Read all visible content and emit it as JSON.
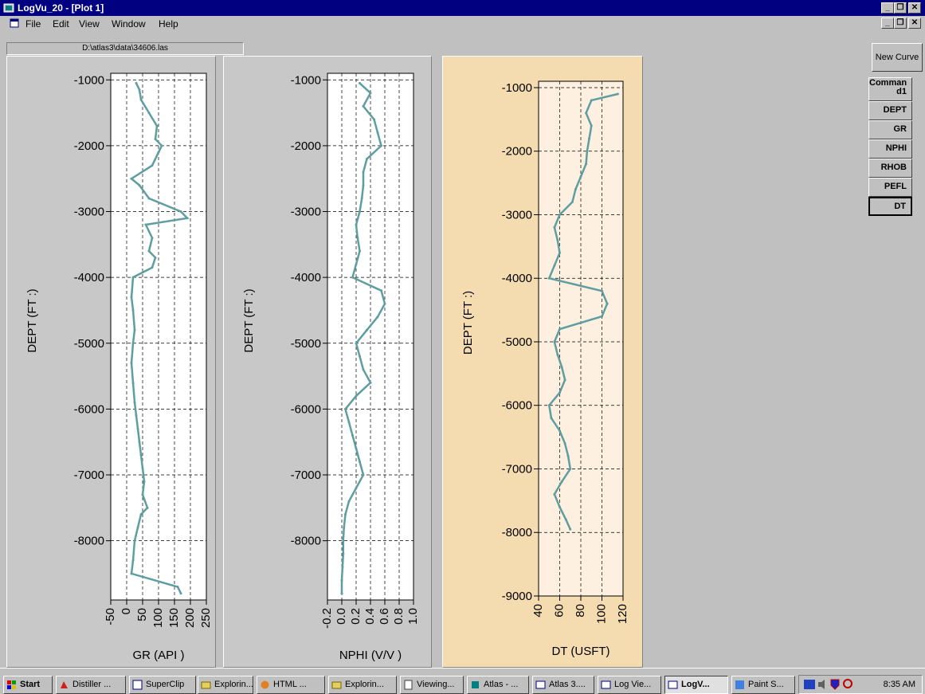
{
  "window": {
    "title": "LogVu_20 - [Plot 1]",
    "caption_buttons": [
      "_",
      "❐",
      "✕"
    ],
    "mdi_buttons": [
      "_",
      "❐",
      "✕"
    ]
  },
  "menu": {
    "file": "File",
    "edit": "Edit",
    "view": "View",
    "window": "Window",
    "help": "Help"
  },
  "file_path": "D:\\atlas3\\data\\34606.las",
  "sidebar": {
    "new_curve": "New Curve",
    "command": "Comman d1",
    "curves": [
      "DEPT",
      "GR",
      "NPHI",
      "RHOB",
      "PEFL",
      "DT"
    ]
  },
  "colors": {
    "curve": "#5f9ea0",
    "panel_bg": "#c8c8c8",
    "panel_selected": "#f4dcb0",
    "plot_bg": "#ffffff",
    "plot_selected_bg": "#fdf0e0"
  },
  "chart_data": [
    {
      "type": "line",
      "curve": "GR",
      "xlabel": "GR (API )",
      "ylabel": "DEPT (FT :)",
      "xlim": [
        -50,
        250
      ],
      "ylim": [
        -8900,
        -900
      ],
      "xticks": [
        "-50",
        "0",
        "50",
        "100",
        "150",
        "200",
        "250"
      ],
      "yticks": [
        "-1000",
        "-2000",
        "-3000",
        "-4000",
        "-5000",
        "-6000",
        "-7000",
        "-8000"
      ],
      "depth": [
        -1050,
        -1150,
        -1300,
        -1500,
        -1700,
        -1900,
        -2000,
        -2100,
        -2300,
        -2500,
        -2600,
        -2800,
        -3000,
        -3100,
        -3200,
        -3400,
        -3600,
        -3700,
        -3850,
        -4000,
        -4300,
        -4500,
        -4800,
        -5000,
        -5300,
        -5600,
        -5900,
        -6100,
        -6300,
        -6500,
        -6700,
        -6900,
        -7100,
        -7300,
        -7500,
        -7600,
        -7800,
        -8000,
        -8300,
        -8500,
        -8700,
        -8800
      ],
      "values": [
        30,
        40,
        45,
        70,
        95,
        90,
        110,
        100,
        80,
        15,
        40,
        70,
        170,
        190,
        60,
        80,
        70,
        90,
        80,
        20,
        15,
        20,
        25,
        20,
        15,
        20,
        25,
        30,
        35,
        40,
        45,
        50,
        55,
        50,
        65,
        45,
        35,
        25,
        20,
        15,
        160,
        170
      ]
    },
    {
      "type": "line",
      "curve": "NPHI",
      "xlabel": "NPHI (V/V )",
      "ylabel": "DEPT (FT :)",
      "xlim": [
        -0.2,
        1.0
      ],
      "ylim": [
        -8900,
        -900
      ],
      "xticks": [
        "-0.2",
        "0.0",
        "0.2",
        "0.4",
        "0.6",
        "0.8",
        "1.0"
      ],
      "yticks": [
        "-1000",
        "-2000",
        "-3000",
        "-4000",
        "-5000",
        "-6000",
        "-7000",
        "-8000"
      ],
      "depth": [
        -1050,
        -1200,
        -1400,
        -1600,
        -1800,
        -2000,
        -2200,
        -2400,
        -2600,
        -2800,
        -3000,
        -3200,
        -3400,
        -3600,
        -3800,
        -4000,
        -4200,
        -4400,
        -4600,
        -4800,
        -5000,
        -5200,
        -5400,
        -5600,
        -5800,
        -6000,
        -6200,
        -6400,
        -6600,
        -6800,
        -7000,
        -7200,
        -7400,
        -7600,
        -7800,
        -8000,
        -8200,
        -8400,
        -8600,
        -8800
      ],
      "values": [
        0.25,
        0.4,
        0.3,
        0.45,
        0.5,
        0.55,
        0.35,
        0.3,
        0.3,
        0.28,
        0.25,
        0.2,
        0.22,
        0.25,
        0.2,
        0.15,
        0.55,
        0.6,
        0.5,
        0.35,
        0.2,
        0.25,
        0.3,
        0.4,
        0.2,
        0.05,
        0.1,
        0.15,
        0.2,
        0.25,
        0.3,
        0.2,
        0.1,
        0.05,
        0.03,
        0.02,
        0.02,
        0.01,
        0.0,
        0.0
      ]
    },
    {
      "type": "line",
      "curve": "DT",
      "xlabel": "DT (USFT)",
      "ylabel": "DEPT (FT :)",
      "xlim": [
        40,
        120
      ],
      "ylim": [
        -9000,
        -900
      ],
      "xticks": [
        "40",
        "60",
        "80",
        "100",
        "120"
      ],
      "yticks": [
        "-1000",
        "-2000",
        "-3000",
        "-4000",
        "-5000",
        "-6000",
        "-7000",
        "-8000",
        "-9000"
      ],
      "depth": [
        -1100,
        -1200,
        -1400,
        -1600,
        -1800,
        -2000,
        -2200,
        -2400,
        -2600,
        -2800,
        -3000,
        -3200,
        -3400,
        -3600,
        -3800,
        -4000,
        -4200,
        -4400,
        -4600,
        -4800,
        -5000,
        -5200,
        -5400,
        -5600,
        -5800,
        -6000,
        -6200,
        -6400,
        -6600,
        -6800,
        -7000,
        -7200,
        -7400,
        -7600,
        -7800,
        -7950
      ],
      "values": [
        115,
        90,
        85,
        90,
        88,
        86,
        85,
        80,
        75,
        72,
        60,
        55,
        58,
        60,
        55,
        50,
        100,
        105,
        100,
        60,
        55,
        58,
        62,
        65,
        60,
        50,
        52,
        60,
        65,
        68,
        70,
        62,
        55,
        60,
        66,
        70
      ]
    }
  ],
  "taskbar": {
    "start": "Start",
    "tasks": [
      "Distiller ...",
      "SuperClip",
      "Explorin...",
      "HTML ...",
      "Explorin...",
      "Viewing...",
      "Atlas - ...",
      "Atlas 3....",
      "Log Vie...",
      "LogV...",
      "Paint S..."
    ],
    "active_task": "LogV...",
    "clock": "8:35 AM"
  }
}
